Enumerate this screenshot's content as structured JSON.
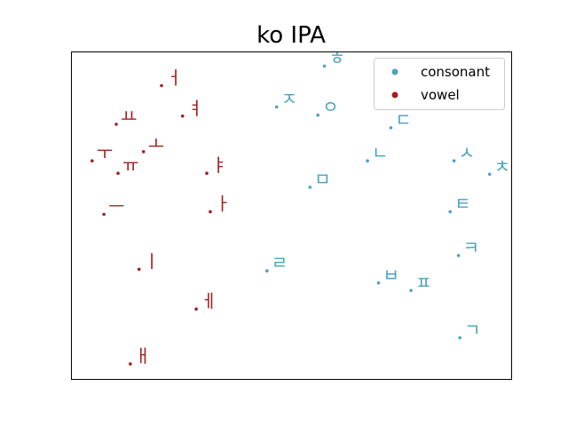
{
  "chart_data": {
    "type": "scatter",
    "title": "ko IPA",
    "xlabel": "",
    "ylabel": "",
    "xlim": [
      0,
      100
    ],
    "ylim": [
      0,
      100
    ],
    "grid": false,
    "axis_ticks": false,
    "legend_placement": "top-right",
    "series": [
      {
        "name": "consonant",
        "color": "#4aa3c0",
        "points": [
          {
            "label": "ㅎ",
            "x": 57.5,
            "y": 95.8
          },
          {
            "label": "ㅈ",
            "x": 46.6,
            "y": 83.3
          },
          {
            "label": "ㅇ",
            "x": 56.0,
            "y": 80.8
          },
          {
            "label": "ㄷ",
            "x": 72.6,
            "y": 76.9
          },
          {
            "label": "ㄴ",
            "x": 67.3,
            "y": 66.8
          },
          {
            "label": "ㅅ",
            "x": 87.0,
            "y": 66.8
          },
          {
            "label": "ㅊ",
            "x": 95.1,
            "y": 62.7
          },
          {
            "label": "ㅁ",
            "x": 54.2,
            "y": 58.7
          },
          {
            "label": "ㅌ",
            "x": 86.1,
            "y": 51.2
          },
          {
            "label": "ㅋ",
            "x": 88.0,
            "y": 37.8
          },
          {
            "label": "ㄹ",
            "x": 44.4,
            "y": 33.1
          },
          {
            "label": "ㅂ",
            "x": 69.8,
            "y": 29.4
          },
          {
            "label": "ㅍ",
            "x": 77.2,
            "y": 27.1
          },
          {
            "label": "ㄱ",
            "x": 88.3,
            "y": 12.6
          }
        ]
      },
      {
        "name": "vowel",
        "color": "#a31f1f",
        "points": [
          {
            "label": "ㅓ",
            "x": 20.4,
            "y": 89.8
          },
          {
            "label": "ㅕ",
            "x": 25.2,
            "y": 80.5
          },
          {
            "label": "ㅛ",
            "x": 10.1,
            "y": 78.0
          },
          {
            "label": "ㅗ",
            "x": 16.3,
            "y": 69.6
          },
          {
            "label": "ㅜ",
            "x": 4.6,
            "y": 66.8
          },
          {
            "label": "ㅠ",
            "x": 10.5,
            "y": 63.0
          },
          {
            "label": "ㅑ",
            "x": 30.7,
            "y": 63.0
          },
          {
            "label": "ㅡ",
            "x": 7.3,
            "y": 50.4
          },
          {
            "label": "ㅏ",
            "x": 31.5,
            "y": 51.2
          },
          {
            "label": "ㅣ",
            "x": 15.3,
            "y": 33.6
          },
          {
            "label": "ㅔ",
            "x": 28.3,
            "y": 21.4
          },
          {
            "label": "ㅐ",
            "x": 13.3,
            "y": 4.6
          }
        ]
      }
    ]
  }
}
